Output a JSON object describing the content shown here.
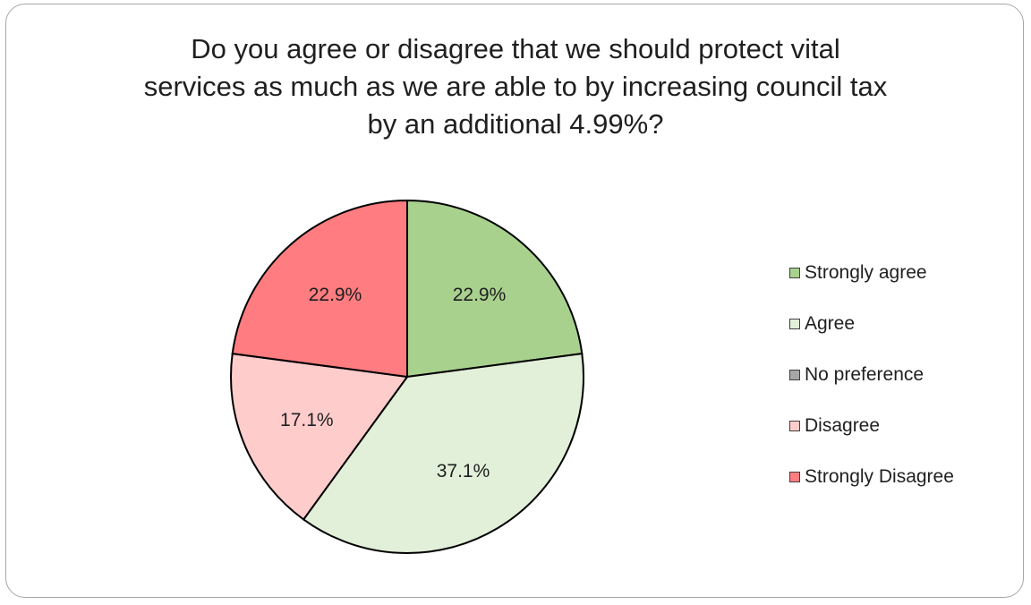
{
  "chart_data": {
    "type": "pie",
    "title": "Do you agree or disagree that we should protect vital\nservices as much as we are able to by increasing council tax\nby an additional 4.99%?",
    "legend_position": "right",
    "slices": [
      {
        "label": "Strongly agree",
        "value": 22.9,
        "value_label": "22.9%",
        "color": "#a9d18e"
      },
      {
        "label": "Agree",
        "value": 37.1,
        "value_label": "37.1%",
        "color": "#e2efd9"
      },
      {
        "label": "No preference",
        "value": 0,
        "value_label": "",
        "color": "#a6a6a6"
      },
      {
        "label": "Disagree",
        "value": 17.1,
        "value_label": "17.1%",
        "color": "#ffcccc"
      },
      {
        "label": "Strongly Disagree",
        "value": 22.9,
        "value_label": "22.9%",
        "color": "#ff7c80"
      }
    ]
  }
}
